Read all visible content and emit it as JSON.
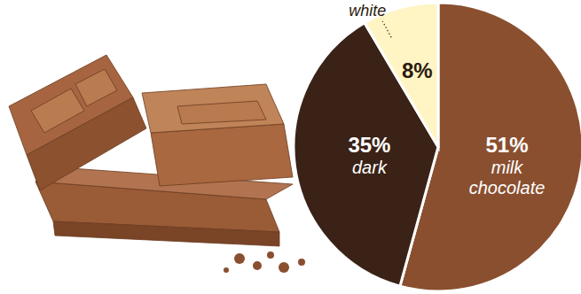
{
  "chart_data": {
    "type": "pie",
    "categories": [
      "milk chocolate",
      "dark",
      "white"
    ],
    "values": [
      51,
      35,
      8
    ],
    "value_labels": [
      "51%",
      "35%",
      "8%"
    ],
    "colors": [
      "#8a4f2f",
      "#3a2216",
      "#fff4c4"
    ],
    "data_labels": true
  }
}
